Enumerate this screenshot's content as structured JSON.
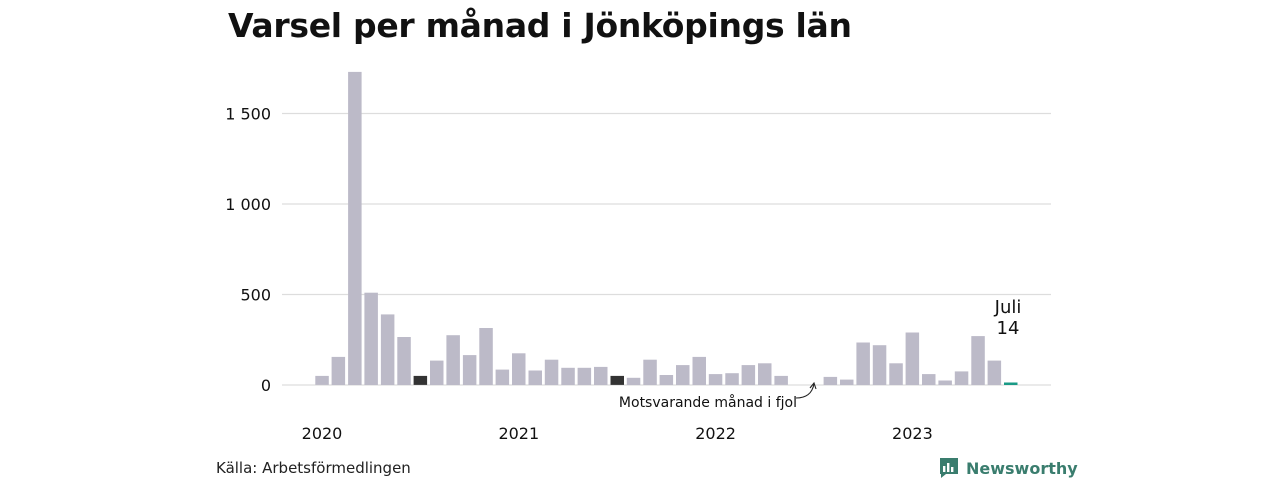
{
  "title": "Varsel per månad i Jönköpings län",
  "source": "Källa: Arbetsförmedlingen",
  "brand": {
    "name": "Newsworthy",
    "icon": "newsworthy-logo-icon",
    "color": "#3a7d6e"
  },
  "chart_data": {
    "type": "bar",
    "title": "Varsel per månad i Jönköpings län",
    "xlabel": "",
    "ylabel": "",
    "ylim": [
      0,
      1800
    ],
    "yticks": [
      0,
      500,
      1000,
      1500
    ],
    "ytick_labels": [
      "0",
      "500",
      "1 000",
      "1 500"
    ],
    "year_labels": [
      "2020",
      "2021",
      "2022",
      "2023"
    ],
    "grid": true,
    "colors": {
      "default": "#bcbac8",
      "highlight_dark": "#333333",
      "current": "#1a9a86"
    },
    "categories": [
      "2020-01",
      "2020-02",
      "2020-03",
      "2020-04",
      "2020-05",
      "2020-06",
      "2020-07",
      "2020-08",
      "2020-09",
      "2020-10",
      "2020-11",
      "2020-12",
      "2021-01",
      "2021-02",
      "2021-03",
      "2021-04",
      "2021-05",
      "2021-06",
      "2021-07",
      "2021-08",
      "2021-09",
      "2021-10",
      "2021-11",
      "2021-12",
      "2022-01",
      "2022-02",
      "2022-03",
      "2022-04",
      "2022-05",
      "2022-06",
      "2022-07",
      "2022-08",
      "2022-09",
      "2022-10",
      "2022-11",
      "2022-12",
      "2023-01",
      "2023-02",
      "2023-03",
      "2023-04",
      "2023-05",
      "2023-06",
      "2023-07"
    ],
    "values": [
      50,
      155,
      1730,
      510,
      390,
      265,
      50,
      135,
      275,
      165,
      315,
      85,
      175,
      80,
      140,
      95,
      95,
      100,
      50,
      40,
      140,
      55,
      110,
      155,
      60,
      65,
      110,
      120,
      50,
      0,
      0,
      45,
      30,
      235,
      220,
      120,
      290,
      60,
      25,
      75,
      270,
      135,
      14
    ],
    "highlights": {
      "2020-07": "highlight_dark",
      "2021-07": "highlight_dark",
      "2023-07": "current"
    },
    "annotations": [
      {
        "text": "Motsvarande månad i fjol",
        "target": "2022-07"
      },
      {
        "text": "Juli",
        "target": "2023-07"
      },
      {
        "text": "14",
        "target": "2023-07"
      }
    ]
  }
}
